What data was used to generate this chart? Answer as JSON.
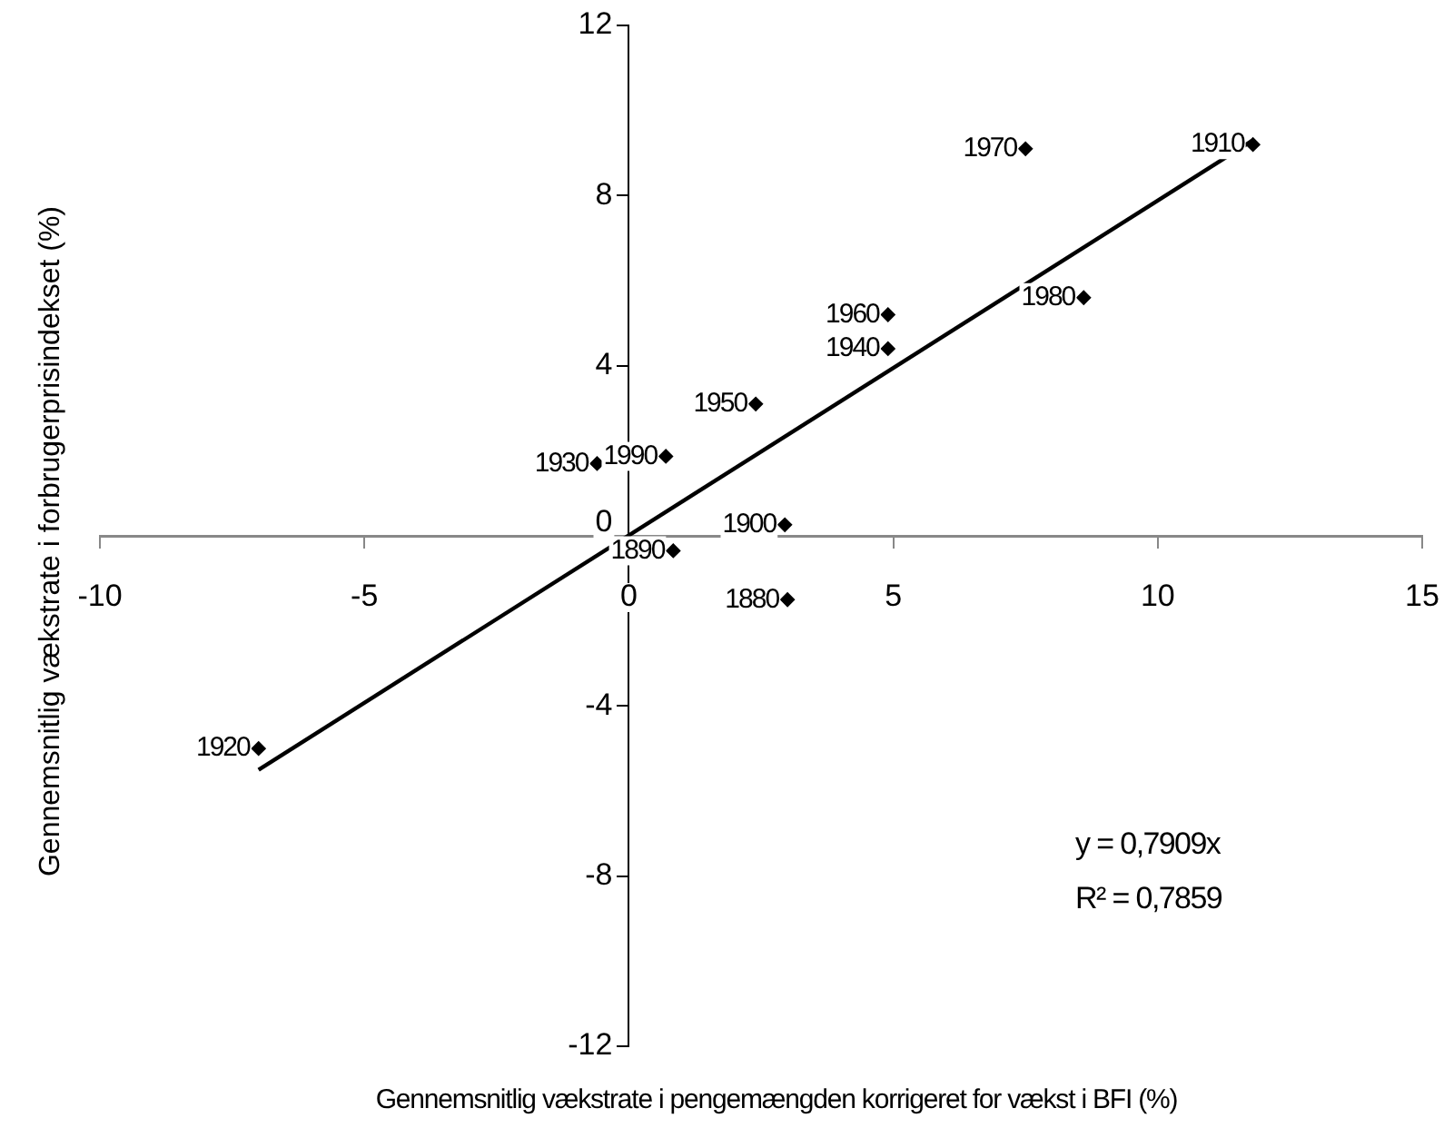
{
  "chart_data": {
    "type": "scatter",
    "xlabel": "Gennemsnitlig vækstrate i pengemængden korrigeret for vækst i BFI (%)",
    "ylabel": "Gennemsnitlig vækstrate i forbrugerprisindekset (%)",
    "xlim": [
      -10,
      15
    ],
    "xticks": [
      -10,
      -5,
      0,
      5,
      10,
      15
    ],
    "ylim": [
      -12,
      12
    ],
    "yticks": [
      -12,
      -8,
      -4,
      0,
      4,
      8,
      12
    ],
    "grid": false,
    "legend": false,
    "marker": "diamond",
    "series": [
      {
        "color": "#000000",
        "x": [
          3.0,
          0.84,
          2.95,
          11.8,
          -7.0,
          -0.6,
          4.9,
          2.4,
          4.9,
          7.5,
          8.6,
          0.7
        ],
        "values": [
          -1.5,
          -0.35,
          0.26,
          9.2,
          -5.0,
          1.7,
          4.4,
          3.1,
          5.2,
          9.1,
          5.6,
          1.87
        ]
      },
      {
        "type": "line",
        "color": "#000000",
        "x": [
          -7.0,
          11.8
        ],
        "values": [
          -5.5,
          9.3
        ],
        "line_style": "solid",
        "marker": "none"
      }
    ],
    "annotations": [
      {
        "text": "1880",
        "x": 3.0,
        "y": -1.5
      },
      {
        "text": "1890",
        "x": 0.84,
        "y": -0.35
      },
      {
        "text": "1900",
        "x": 2.95,
        "y": 0.26
      },
      {
        "text": "1910",
        "x": 11.8,
        "y": 9.2
      },
      {
        "text": "1920",
        "x": -7.0,
        "y": -5.0
      },
      {
        "text": "1930",
        "x": -0.6,
        "y": 1.7
      },
      {
        "text": "1940",
        "x": 4.9,
        "y": 4.4
      },
      {
        "text": "1950",
        "x": 2.4,
        "y": 3.1
      },
      {
        "text": "1960",
        "x": 4.9,
        "y": 5.2
      },
      {
        "text": "1970",
        "x": 7.5,
        "y": 9.1
      },
      {
        "text": "1980",
        "x": 8.6,
        "y": 5.6
      },
      {
        "text": "1990",
        "x": 0.7,
        "y": 1.87
      },
      "y = 0,7909x",
      "R² = 0,7859"
    ]
  }
}
